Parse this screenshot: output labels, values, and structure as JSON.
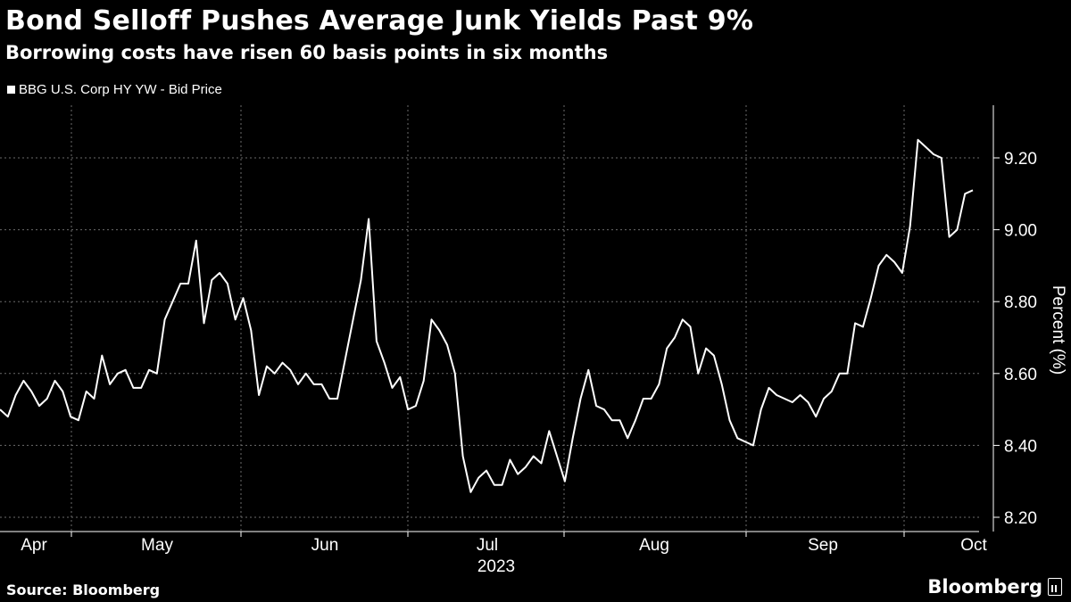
{
  "header": {
    "title": "Bond Selloff Pushes Average Junk Yields Past 9%",
    "subtitle": "Borrowing costs have risen 60 basis points in six months"
  },
  "footer": {
    "source": "Source: Bloomberg",
    "brand": "Bloomberg"
  },
  "colors": {
    "background": "#000000",
    "line": "#ffffff",
    "grid": "#6b6b6b"
  },
  "chart_data": {
    "type": "line",
    "title": "Bond Selloff Pushes Average Junk Yields Past 9%",
    "subtitle": "Borrowing costs have risen 60 basis points in six months",
    "legend": [
      "BBG U.S. Corp HY YW - Bid Price"
    ],
    "ylabel": "Percent (%)",
    "xlabel": "2023",
    "ylim": [
      8.2,
      9.3
    ],
    "yticks": [
      "8.20",
      "8.40",
      "8.60",
      "8.80",
      "9.00",
      "9.20"
    ],
    "ytick_values": [
      8.2,
      8.4,
      8.6,
      8.8,
      9.0,
      9.2
    ],
    "xticks": [
      "Apr",
      "May",
      "Jun",
      "Jul",
      "Aug",
      "Sep",
      "Oct"
    ],
    "grid": true,
    "series": [
      {
        "name": "BBG U.S. Corp HY YW - Bid Price",
        "values": [
          8.5,
          8.48,
          8.54,
          8.58,
          8.55,
          8.51,
          8.53,
          8.58,
          8.55,
          8.48,
          8.47,
          8.55,
          8.53,
          8.65,
          8.57,
          8.6,
          8.61,
          8.56,
          8.56,
          8.61,
          8.6,
          8.75,
          8.8,
          8.85,
          8.85,
          8.97,
          8.74,
          8.86,
          8.88,
          8.85,
          8.75,
          8.81,
          8.72,
          8.54,
          8.62,
          8.6,
          8.63,
          8.61,
          8.57,
          8.6,
          8.57,
          8.57,
          8.53,
          8.53,
          8.64,
          8.75,
          8.86,
          9.03,
          8.69,
          8.63,
          8.56,
          8.59,
          8.5,
          8.51,
          8.58,
          8.75,
          8.72,
          8.68,
          8.6,
          8.37,
          8.27,
          8.31,
          8.33,
          8.29,
          8.29,
          8.36,
          8.32,
          8.34,
          8.37,
          8.35,
          8.44,
          8.37,
          8.3,
          8.42,
          8.53,
          8.61,
          8.51,
          8.5,
          8.47,
          8.47,
          8.42,
          8.47,
          8.53,
          8.53,
          8.57,
          8.67,
          8.7,
          8.75,
          8.73,
          8.6,
          8.67,
          8.65,
          8.57,
          8.47,
          8.42,
          8.41,
          8.4,
          8.5,
          8.56,
          8.54,
          8.53,
          8.52,
          8.54,
          8.52,
          8.48,
          8.53,
          8.55,
          8.6,
          8.6,
          8.74,
          8.73,
          8.81,
          8.9,
          8.93,
          8.91,
          8.88,
          9.01,
          9.25,
          9.23,
          9.21,
          9.2,
          8.98,
          9.0,
          9.1,
          9.11
        ]
      }
    ]
  }
}
